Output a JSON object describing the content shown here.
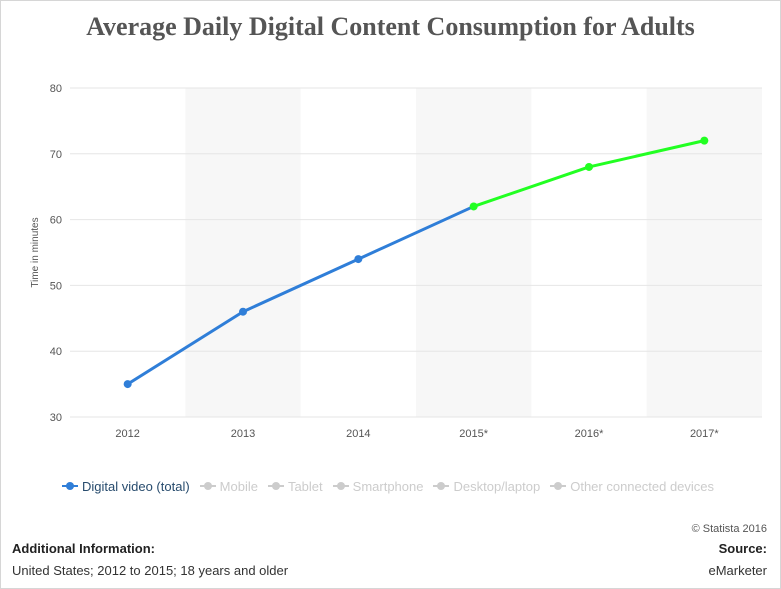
{
  "title": "Average Daily Digital Content Consumption for Adults",
  "chart_data": {
    "type": "line",
    "categories": [
      "2012",
      "2013",
      "2014",
      "2015*",
      "2016*",
      "2017*"
    ],
    "series": [
      {
        "name": "Digital video (total)",
        "values": [
          35,
          46,
          54,
          62,
          68,
          72
        ],
        "color": "#2f7ed8",
        "forecast_color": "#22ff22",
        "forecast_from_index": 3
      }
    ],
    "ylabel": "Time in minutes",
    "xlabel": "",
    "ylim": [
      30,
      80
    ],
    "yticks": [
      30,
      40,
      50,
      60,
      70,
      80
    ],
    "grid": true,
    "legend_position": "bottom"
  },
  "legend": {
    "items": [
      {
        "label": "Digital video (total)",
        "active": true,
        "color": "#2f7ed8"
      },
      {
        "label": "Mobile",
        "active": false,
        "color": "#cccccc"
      },
      {
        "label": "Tablet",
        "active": false,
        "color": "#cccccc"
      },
      {
        "label": "Smartphone",
        "active": false,
        "color": "#cccccc"
      },
      {
        "label": "Desktop/laptop",
        "active": false,
        "color": "#cccccc"
      },
      {
        "label": "Other connected devices",
        "active": false,
        "color": "#cccccc"
      }
    ]
  },
  "footer": {
    "copyright": "© Statista 2016",
    "additional_info_title": "Additional Information:",
    "additional_info_text": "United States; 2012 to 2015; 18 years and older",
    "source_title": "Source:",
    "source_text": "eMarketer"
  }
}
